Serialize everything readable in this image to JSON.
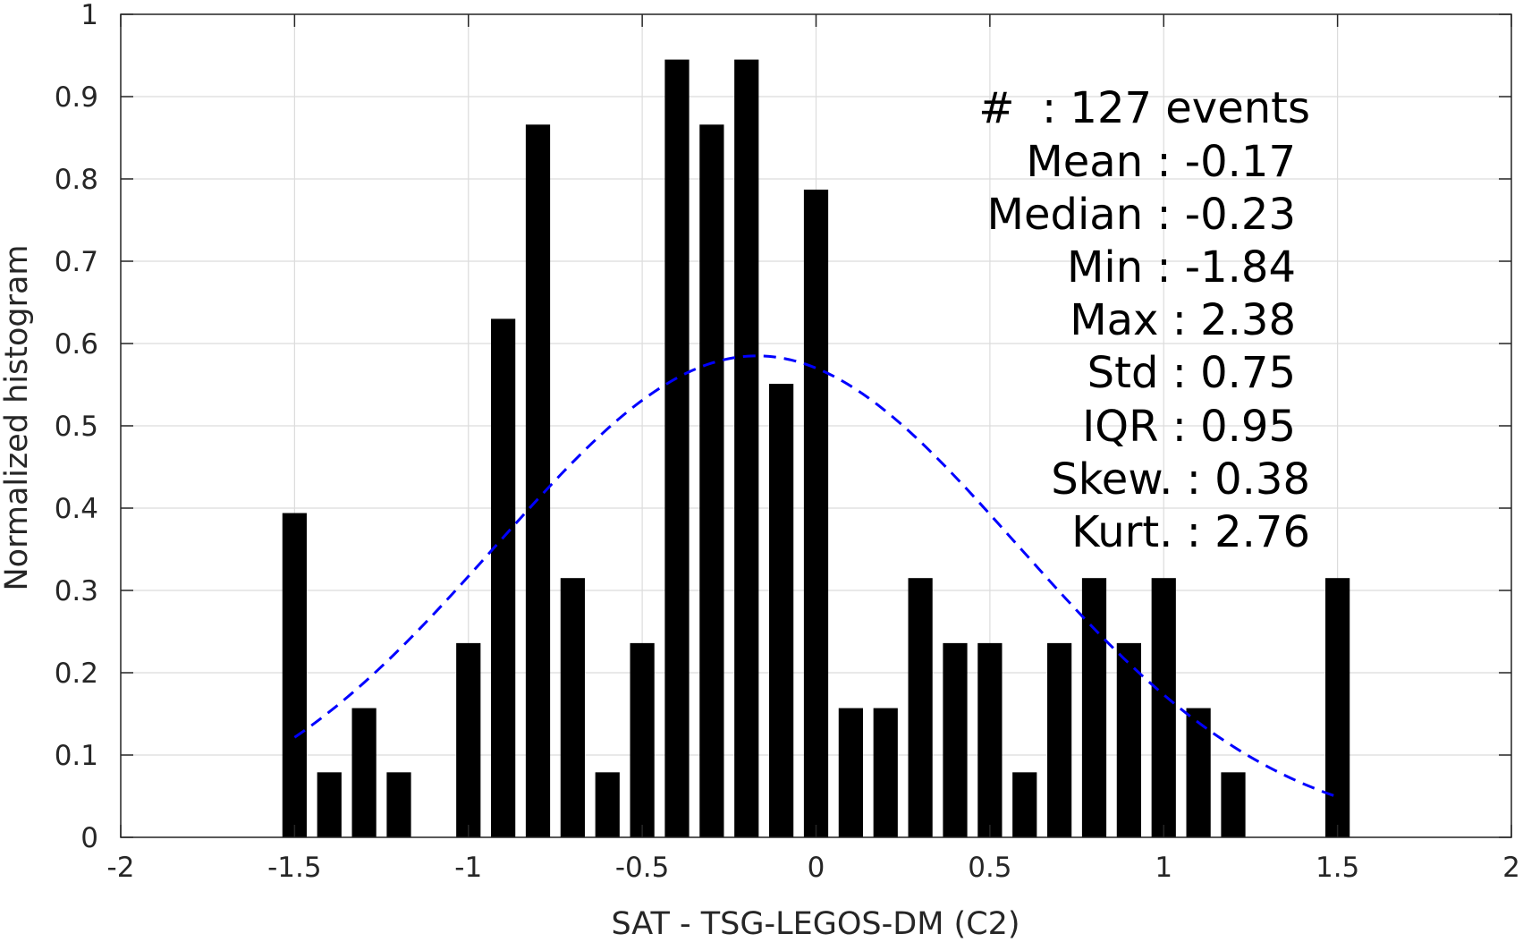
{
  "chart_data": {
    "type": "bar",
    "xlabel": "SAT - TSG-LEGOS-DM (C2)",
    "ylabel": "Normalized histogram",
    "xlim": [
      -2,
      2
    ],
    "ylim": [
      0,
      1
    ],
    "xticks": [
      -2,
      -1.5,
      -1,
      -0.5,
      0,
      0.5,
      1,
      1.5,
      2
    ],
    "xtick_labels": [
      "-2",
      "-1.5",
      "-1",
      "-0.5",
      "0",
      "0.5",
      "1",
      "1.5",
      "2"
    ],
    "yticks": [
      0,
      0.1,
      0.2,
      0.3,
      0.4,
      0.5,
      0.6,
      0.7,
      0.8,
      0.9,
      1
    ],
    "ytick_labels": [
      "0",
      "0.1",
      "0.2",
      "0.3",
      "0.4",
      "0.5",
      "0.6",
      "0.7",
      "0.8",
      "0.9",
      "1"
    ],
    "grid": true,
    "bar_color": "#000000",
    "curve_color": "#0000ff",
    "bar_width": 0.07,
    "bars": [
      {
        "x": -1.5,
        "value": 0.394
      },
      {
        "x": -1.4,
        "value": 0.079
      },
      {
        "x": -1.3,
        "value": 0.157
      },
      {
        "x": -1.2,
        "value": 0.079
      },
      {
        "x": -1.1,
        "value": 0
      },
      {
        "x": -1.0,
        "value": 0.236
      },
      {
        "x": -0.9,
        "value": 0.63
      },
      {
        "x": -0.8,
        "value": 0.866
      },
      {
        "x": -0.7,
        "value": 0.315
      },
      {
        "x": -0.6,
        "value": 0.079
      },
      {
        "x": -0.5,
        "value": 0.236
      },
      {
        "x": -0.4,
        "value": 0.945
      },
      {
        "x": -0.3,
        "value": 0.866
      },
      {
        "x": -0.2,
        "value": 0.945
      },
      {
        "x": -0.1,
        "value": 0.551
      },
      {
        "x": 0.0,
        "value": 0.787
      },
      {
        "x": 0.1,
        "value": 0.157
      },
      {
        "x": 0.2,
        "value": 0.157
      },
      {
        "x": 0.3,
        "value": 0.315
      },
      {
        "x": 0.4,
        "value": 0.236
      },
      {
        "x": 0.5,
        "value": 0.236
      },
      {
        "x": 0.6,
        "value": 0.079
      },
      {
        "x": 0.7,
        "value": 0.236
      },
      {
        "x": 0.8,
        "value": 0.315
      },
      {
        "x": 0.9,
        "value": 0.236
      },
      {
        "x": 1.0,
        "value": 0.315
      },
      {
        "x": 1.1,
        "value": 0.157
      },
      {
        "x": 1.2,
        "value": 0.079
      },
      {
        "x": 1.3,
        "value": 0
      },
      {
        "x": 1.4,
        "value": 0
      },
      {
        "x": 1.5,
        "value": 0.315
      }
    ],
    "fit_curve": {
      "style": "dashed",
      "mean": -0.17,
      "std": 0.75,
      "peak": 0.585,
      "x_range": [
        -1.5,
        1.5
      ]
    },
    "stats": {
      "count_line": "#  : 127 events",
      "mean_line": "Mean : -0.17",
      "median_line": "Median : -0.23",
      "min_line": "Min : -1.84",
      "max_line": "Max : 2.38",
      "std_line": "Std : 0.75",
      "iqr_line": "IQR : 0.95",
      "skew_line": "Skew. : 0.38",
      "kurt_line": "Kurt. : 2.76"
    }
  }
}
